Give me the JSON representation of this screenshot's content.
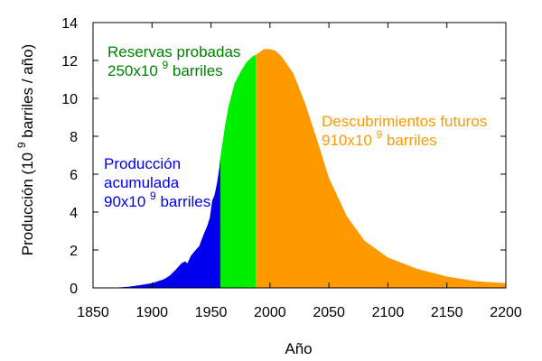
{
  "chart_data": {
    "type": "area",
    "xlabel": "Año",
    "ylabel_main": "Producción (10",
    "ylabel_sup": "9",
    "ylabel_tail": " barriles / año)",
    "xlim": [
      1850,
      2200
    ],
    "ylim": [
      0,
      14
    ],
    "x_ticks": [
      1850,
      1900,
      1950,
      2000,
      2050,
      2100,
      2150,
      2200
    ],
    "y_ticks": [
      0,
      2,
      4,
      6,
      8,
      10,
      12,
      14
    ],
    "grid": false,
    "series": [
      {
        "color": "#0000ee",
        "x": [
          1850,
          1870,
          1880,
          1890,
          1900,
          1910,
          1915,
          1920,
          1925,
          1928,
          1930,
          1933,
          1937,
          1940,
          1943,
          1945,
          1947,
          1949,
          1951,
          1953,
          1955,
          1957,
          1958
        ],
        "y": [
          0,
          0.02,
          0.06,
          0.15,
          0.25,
          0.45,
          0.65,
          0.95,
          1.3,
          1.4,
          1.3,
          1.7,
          2.0,
          2.2,
          2.7,
          3.0,
          3.3,
          3.7,
          4.6,
          4.9,
          5.5,
          6.3,
          6.9
        ]
      },
      {
        "color": "#00ee00",
        "x": [
          1958,
          1962,
          1965,
          1970,
          1975,
          1980,
          1985,
          1988
        ],
        "y": [
          6.9,
          8.6,
          9.6,
          10.8,
          11.4,
          11.9,
          12.2,
          12.3
        ]
      },
      {
        "color": "#ff9900",
        "x": [
          1988,
          1995,
          2000,
          2005,
          2010,
          2020,
          2030,
          2040,
          2050,
          2065,
          2080,
          2100,
          2125,
          2150,
          2175,
          2200
        ],
        "y": [
          12.3,
          12.6,
          12.6,
          12.5,
          12.2,
          11.3,
          9.7,
          7.8,
          5.8,
          3.8,
          2.5,
          1.6,
          1.0,
          0.6,
          0.35,
          0.25
        ]
      }
    ],
    "annotations": [
      {
        "lines": [
          "Producción",
          "acumulada",
          "90x10|9| barriles"
        ],
        "color": "#0000ee"
      },
      {
        "lines": [
          "Reservas probadas",
          "250x10|9| barriles"
        ],
        "color": "#008000"
      },
      {
        "lines": [
          "Descubrimientos futuros",
          "910x10|9| barriles"
        ],
        "color": "#ff9900"
      }
    ]
  }
}
